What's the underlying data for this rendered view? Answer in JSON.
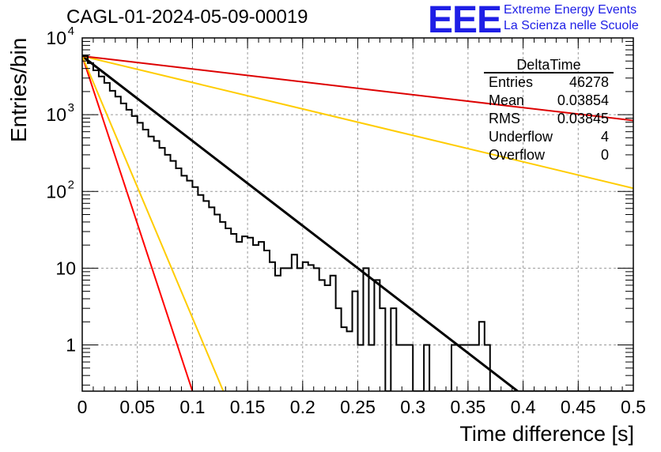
{
  "header": {
    "run_title": "CAGL-01-2024-05-09-00019",
    "logo": "EEE",
    "brand_line1": "Extreme Energy Events",
    "brand_line2": "La Scienza nelle Scuole",
    "brand_color": "#1e1ee6"
  },
  "stats": {
    "title": "DeltaTime",
    "rows": [
      {
        "label": "Entries",
        "value": "46278"
      },
      {
        "label": "Mean",
        "value": "0.03854"
      },
      {
        "label": "RMS",
        "value": "0.03845"
      },
      {
        "label": "Underflow",
        "value": "4"
      },
      {
        "label": "Overflow",
        "value": "0"
      }
    ]
  },
  "chart_data": {
    "type": "line",
    "title": "CAGL-01-2024-05-09-00019",
    "xlabel": "Time difference [s]",
    "ylabel": "Entries/bin",
    "xlim": [
      0,
      0.5
    ],
    "ylim": [
      0.25,
      10000
    ],
    "yscale": "log",
    "grid": true,
    "x_ticks": [
      "0",
      "0.05",
      "0.1",
      "0.15",
      "0.2",
      "0.25",
      "0.3",
      "0.35",
      "0.4",
      "0.45",
      "0.5"
    ],
    "x_tick_values": [
      0,
      0.05,
      0.1,
      0.15,
      0.2,
      0.25,
      0.3,
      0.35,
      0.4,
      0.45,
      0.5
    ],
    "y_ticks": [
      {
        "value": 1,
        "label": "1"
      },
      {
        "value": 10,
        "label": "10"
      },
      {
        "value": 100,
        "label": "10",
        "exp": "2"
      },
      {
        "value": 1000,
        "label": "10",
        "exp": "3"
      },
      {
        "value": 10000,
        "label": "10",
        "exp": "4"
      }
    ],
    "histogram": {
      "bin_width": 0.005,
      "color": "#000000",
      "values": [
        5800,
        4700,
        3780,
        3150,
        2600,
        2050,
        1720,
        1400,
        1160,
        960,
        785,
        640,
        520,
        455,
        370,
        300,
        250,
        200,
        160,
        138,
        114,
        90,
        75,
        62,
        50,
        40,
        33,
        28,
        22,
        26,
        25,
        20,
        22,
        17,
        12,
        8,
        10,
        10,
        15,
        10,
        12,
        11,
        10,
        7,
        6,
        8,
        3,
        1.7,
        1.5,
        5,
        1,
        10,
        1,
        7,
        3,
        0.25,
        3,
        1,
        1,
        1,
        0.25,
        0.25,
        1,
        0.25,
        0.25,
        0.25,
        0.25,
        1,
        1,
        1,
        1,
        1,
        2,
        1,
        0.25,
        0.25,
        0.25,
        0.25,
        0.25,
        0.25,
        0.25,
        0.25,
        0.25,
        0.25,
        0.25,
        0.25,
        0.25,
        0.25,
        0.25,
        0.25,
        0.25,
        0.25,
        0.25,
        0.25,
        0.25,
        0.25,
        0.25,
        0.25,
        0.25,
        0.25
      ]
    },
    "series": [
      {
        "color": "#000000",
        "x": [
          0,
          0.395
        ],
        "y": [
          5800,
          0.25
        ]
      },
      {
        "color": "#ff0000",
        "x": [
          0,
          0.1
        ],
        "y": [
          5800,
          0.25
        ]
      },
      {
        "color": "#ffcc00",
        "x": [
          0,
          0.128
        ],
        "y": [
          5800,
          0.25
        ]
      },
      {
        "color": "#ffcc00",
        "x": [
          0,
          0.5
        ],
        "y": [
          5800,
          110
        ]
      },
      {
        "color": "#dd0000",
        "x": [
          0,
          0.5
        ],
        "y": [
          5800,
          840
        ]
      }
    ]
  }
}
